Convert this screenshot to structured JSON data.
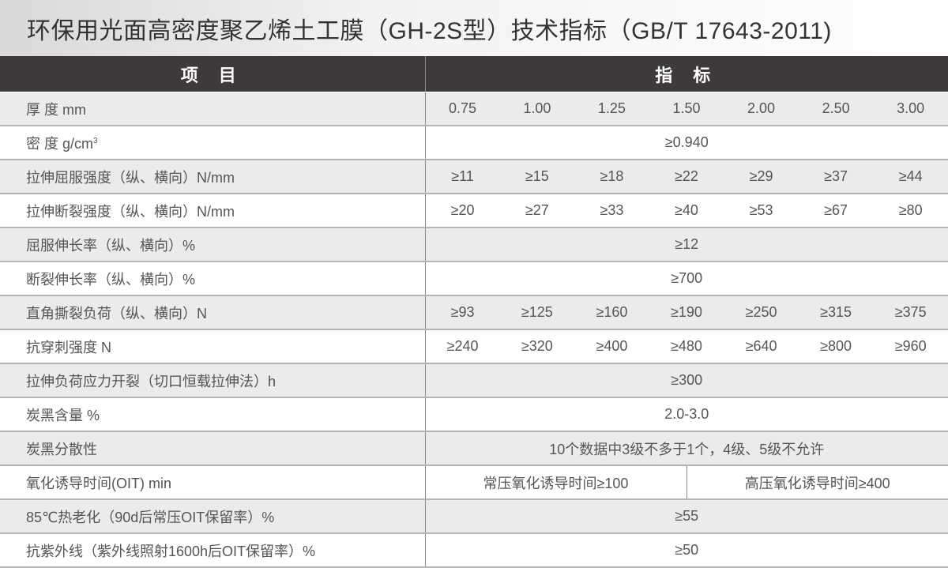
{
  "title": "环保用光面高密度聚乙烯土工膜（GH-2S型）技术指标（GB/T 17643-2011)",
  "header": {
    "item": "项 目",
    "spec": "指 标"
  },
  "rows": [
    {
      "label": "厚 度 mm",
      "values": [
        "0.75",
        "1.00",
        "1.25",
        "1.50",
        "2.00",
        "2.50",
        "3.00"
      ]
    },
    {
      "label": "密 度 g/cm",
      "sup": "3",
      "value": "≥0.940"
    },
    {
      "label": "拉伸屈服强度（纵、横向）N/mm",
      "values": [
        "≥11",
        "≥15",
        "≥18",
        "≥22",
        "≥29",
        "≥37",
        "≥44"
      ]
    },
    {
      "label": "拉伸断裂强度（纵、横向）N/mm",
      "values": [
        "≥20",
        "≥27",
        "≥33",
        "≥40",
        "≥53",
        "≥67",
        "≥80"
      ]
    },
    {
      "label": "屈服伸长率（纵、横向）%",
      "value": "≥12"
    },
    {
      "label": "断裂伸长率（纵、横向）%",
      "value": "≥700"
    },
    {
      "label": "直角撕裂负荷（纵、横向）N",
      "values": [
        "≥93",
        "≥125",
        "≥160",
        "≥190",
        "≥250",
        "≥315",
        "≥375"
      ]
    },
    {
      "label": "抗穿刺强度 N",
      "values": [
        "≥240",
        "≥320",
        "≥400",
        "≥480",
        "≥640",
        "≥800",
        "≥960"
      ]
    },
    {
      "label": "拉伸负荷应力开裂（切口恒载拉伸法）h",
      "value": "≥300"
    },
    {
      "label": "炭黑含量 %",
      "value": "2.0-3.0"
    },
    {
      "label": "炭黑分散性",
      "value": "10个数据中3级不多于1个，4级、5级不允许"
    },
    {
      "label": "氧化诱导时间(OIT) min",
      "split": [
        "常压氧化诱导时间≥100",
        "高压氧化诱导时间≥400"
      ]
    },
    {
      "label": "85℃热老化（90d后常压OIT保留率）%",
      "value": "≥55"
    },
    {
      "label": "抗紫外线（紫外线照射1600h后OIT保留率）%",
      "value": "≥50"
    }
  ]
}
